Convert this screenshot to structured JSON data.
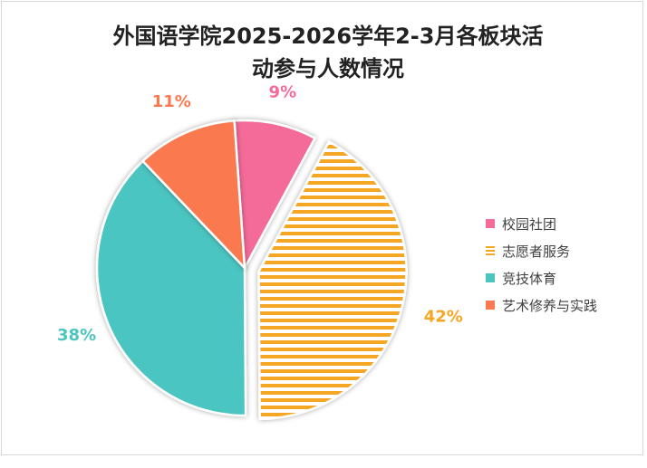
{
  "chart_data": {
    "type": "pie",
    "title_line1": "外国语学院2025-2026学年2-3月各板块活",
    "title_line2": "动参与人数情况",
    "series": [
      {
        "name": "校园社团",
        "value": 9,
        "label": "9%",
        "color": "#f46b99",
        "pattern": "solid"
      },
      {
        "name": "志愿者服务",
        "value": 42,
        "label": "42%",
        "color": "#f5a623",
        "pattern": "stripes"
      },
      {
        "name": "竞技体育",
        "value": 38,
        "label": "38%",
        "color": "#4cc5c1",
        "pattern": "solid"
      },
      {
        "name": "艺术修养与实践",
        "value": 11,
        "label": "11%",
        "color": "#fb7950",
        "pattern": "solid"
      }
    ],
    "legend_position": "right"
  }
}
